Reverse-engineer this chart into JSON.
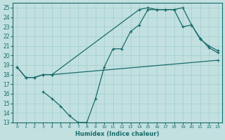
{
  "xlabel": "Humidex (Indice chaleur)",
  "bg_color": "#c2e0e0",
  "line_color": "#1a6b6b",
  "grid_color": "#9fcece",
  "xlim": [
    -0.5,
    23.5
  ],
  "ylim": [
    13,
    25.5
  ],
  "xticks": [
    0,
    1,
    2,
    3,
    4,
    5,
    6,
    7,
    8,
    9,
    10,
    11,
    12,
    13,
    14,
    15,
    16,
    17,
    18,
    19,
    20,
    21,
    22,
    23
  ],
  "yticks": [
    13,
    14,
    15,
    16,
    17,
    18,
    19,
    20,
    21,
    22,
    23,
    24,
    25
  ],
  "line1_x": [
    0,
    1,
    2,
    3,
    4,
    14,
    15,
    16,
    17,
    18,
    19,
    20,
    21,
    22,
    23
  ],
  "line1_y": [
    18.8,
    17.7,
    17.7,
    18.0,
    18.0,
    24.8,
    25.0,
    24.8,
    24.8,
    24.8,
    25.0,
    23.2,
    21.8,
    20.8,
    20.3
  ],
  "line2_x": [
    0,
    1,
    2,
    3,
    4,
    23
  ],
  "line2_y": [
    18.8,
    17.7,
    17.7,
    18.0,
    18.0,
    19.5
  ],
  "line3_x": [
    3,
    4,
    5,
    6,
    7,
    8,
    9,
    10,
    11,
    12,
    13,
    14,
    15,
    16,
    17,
    18,
    19,
    20,
    21,
    22,
    23
  ],
  "line3_y": [
    16.2,
    15.5,
    14.7,
    13.7,
    13.0,
    13.0,
    15.5,
    18.8,
    20.7,
    20.7,
    22.5,
    23.2,
    24.8,
    24.8,
    24.8,
    24.8,
    23.0,
    23.2,
    21.7,
    21.0,
    20.5
  ]
}
